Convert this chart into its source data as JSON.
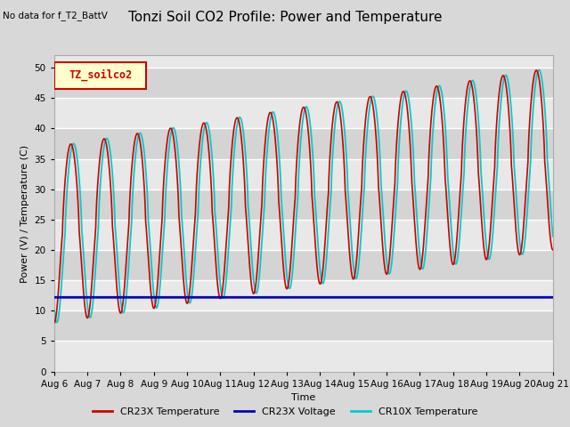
{
  "title": "Tonzi Soil CO2 Profile: Power and Temperature",
  "annotation": "No data for f_T2_BattV",
  "legend_box_label": "TZ_soilco2",
  "ylabel": "Power (V) / Temperature (C)",
  "xlabel": "Time",
  "ylim": [
    0,
    52
  ],
  "yticks": [
    0,
    5,
    10,
    15,
    20,
    25,
    30,
    35,
    40,
    45,
    50
  ],
  "xticklabels": [
    "Aug 6",
    "Aug 7",
    "Aug 8",
    "Aug 9",
    "Aug 10",
    "Aug 11",
    "Aug 12",
    "Aug 13",
    "Aug 14",
    "Aug 15",
    "Aug 16",
    "Aug 17",
    "Aug 18",
    "Aug 19",
    "Aug 20",
    "Aug 21"
  ],
  "cr23x_temp_color": "#cc0000",
  "cr23x_volt_color": "#0000bb",
  "cr10x_temp_color": "#00cccc",
  "background_color": "#d8d8d8",
  "plot_bg_color_light": "#e8e8e8",
  "plot_bg_color_dark": "#d4d4d4",
  "grid_color": "#ffffff",
  "legend_box_color": "#ffffcc",
  "legend_box_border": "#cc0000",
  "voltage_level": 12.2,
  "title_fontsize": 11,
  "label_fontsize": 8,
  "tick_fontsize": 7.5
}
